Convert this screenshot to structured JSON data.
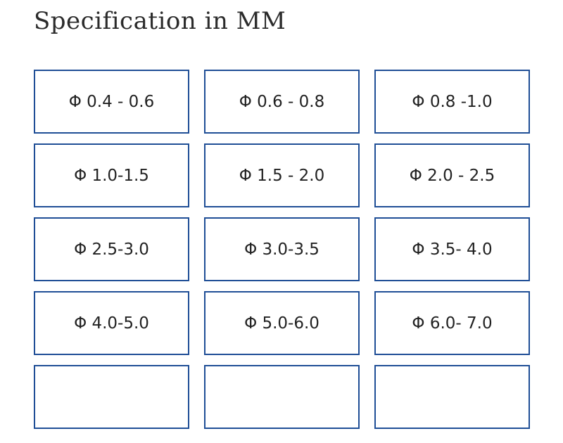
{
  "title": "Specification in MM",
  "options": [
    "Φ 0.4 - 0.6",
    "Φ 0.6 - 0.8",
    "Φ 0.8 -1.0",
    "Φ 1.0-1.5",
    "Φ 1.5 - 2.0",
    "Φ 2.0 - 2.5",
    "Φ 2.5-3.0",
    "Φ 3.0-3.5",
    "Φ 3.5- 4.0",
    "Φ 4.0-5.0",
    "Φ 5.0-6.0",
    "Φ 6.0- 7.0"
  ]
}
